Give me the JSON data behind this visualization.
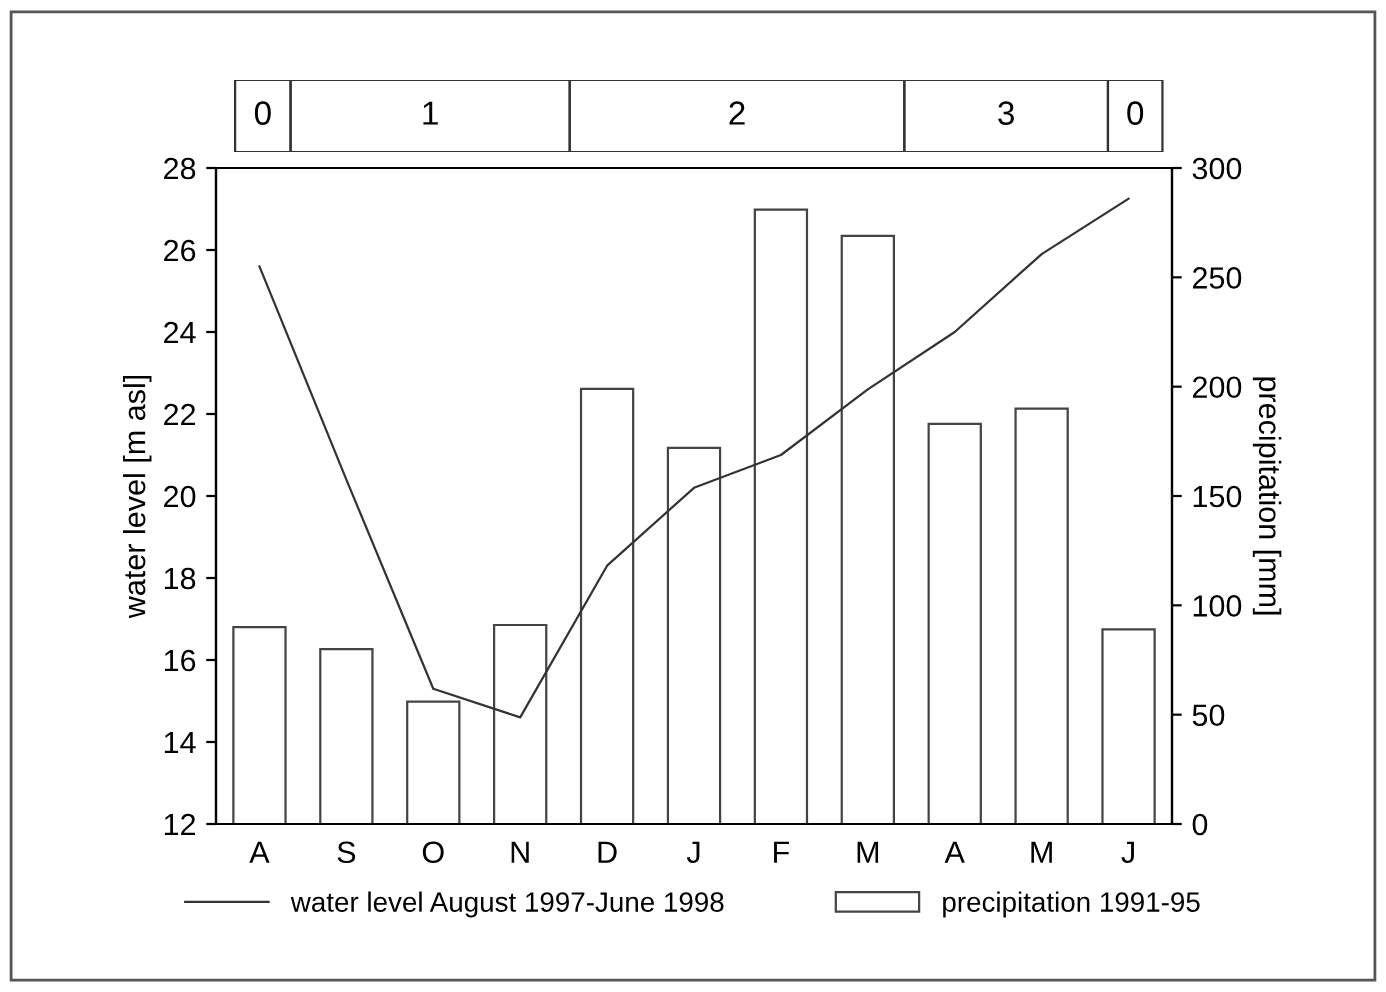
{
  "chart_data": {
    "type": "bar",
    "categories": [
      "A",
      "S",
      "O",
      "N",
      "D",
      "J",
      "F",
      "M",
      "A",
      "M",
      "J"
    ],
    "ylabel": "water level [m asl]",
    "y2label": "precipitation [mm]",
    "ylim": [
      12,
      28
    ],
    "yticks": [
      12,
      14,
      16,
      18,
      20,
      22,
      24,
      26,
      28
    ],
    "y2lim": [
      0,
      300
    ],
    "y2ticks": [
      0,
      50,
      100,
      150,
      200,
      250,
      300
    ],
    "series": [
      {
        "name": "water level August 1997-June 1998",
        "type": "line",
        "color": "#333333",
        "axis": "y",
        "values": [
          25.6,
          20.4,
          15.3,
          14.6,
          18.3,
          20.2,
          21.0,
          22.6,
          24.0,
          25.9,
          27.25
        ]
      },
      {
        "name": "precipitation 1991-95",
        "color": "#ffffff",
        "axis": "y2",
        "values": [
          90,
          80,
          56,
          91,
          199,
          172,
          281,
          269,
          183,
          190,
          89
        ]
      }
    ],
    "annotations": [
      "0",
      "1",
      "2",
      "3",
      "0"
    ],
    "legend": "bottom",
    "grid": false
  }
}
